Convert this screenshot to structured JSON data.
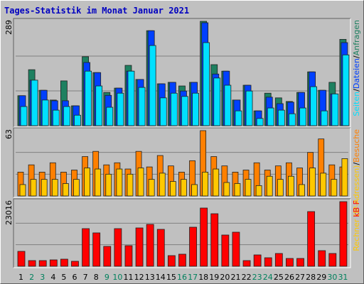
{
  "chart_data": [
    {
      "type": "bar",
      "title": "Tages-Statistik im Monat Januar 2021",
      "categories": [
        "1",
        "2",
        "3",
        "4",
        "5",
        "6",
        "7",
        "8",
        "9",
        "10",
        "11",
        "12",
        "13",
        "14",
        "15",
        "16",
        "17",
        "18",
        "19",
        "20",
        "21",
        "22",
        "23",
        "24",
        "25",
        "26",
        "27",
        "28",
        "29",
        "30",
        "31"
      ],
      "category_colors": [
        "#000000",
        "#00805c",
        "#00805c",
        "#000000",
        "#000000",
        "#000000",
        "#000000",
        "#000000",
        "#00805c",
        "#00805c",
        "#000000",
        "#000000",
        "#000000",
        "#000000",
        "#000000",
        "#00805c",
        "#00805c",
        "#000000",
        "#000000",
        "#000000",
        "#000000",
        "#000000",
        "#00805c",
        "#00805c",
        "#000000",
        "#000000",
        "#000000",
        "#000000",
        "#000000",
        "#00805c",
        "#00805c"
      ],
      "ylim": [
        0,
        289
      ],
      "yticks": [
        289
      ],
      "legend_separator": "/",
      "series": [
        {
          "name": "Anfragen",
          "color": "#1e8060",
          "values": [
            83,
            155,
            98,
            71,
            124,
            55,
            191,
            147,
            92,
            104,
            167,
            128,
            263,
            116,
            120,
            110,
            120,
            289,
            169,
            151,
            71,
            112,
            41,
            90,
            77,
            67,
            92,
            149,
            98,
            120,
            239
          ]
        },
        {
          "name": "Dateien",
          "color": "#0040ff",
          "values": [
            83,
            126,
            98,
            69,
            69,
            55,
            175,
            147,
            84,
            104,
            151,
            128,
            263,
            116,
            120,
            96,
            120,
            285,
            143,
            151,
            71,
            112,
            41,
            79,
            61,
            65,
            92,
            149,
            98,
            88,
            230
          ]
        },
        {
          "name": "Seiten",
          "color": "#00e0ff",
          "values": [
            53,
            126,
            71,
            43,
            53,
            29,
            151,
            110,
            51,
            90,
            151,
            106,
            222,
            77,
            90,
            81,
            90,
            230,
            132,
            112,
            41,
            96,
            20,
            49,
            43,
            33,
            49,
            108,
            41,
            88,
            196
          ]
        }
      ]
    },
    {
      "type": "bar",
      "ylim": [
        0,
        63
      ],
      "yticks": [
        63
      ],
      "legend_separator": "/",
      "series": [
        {
          "name": "Besuche",
          "color": "#ff8000",
          "values": [
            23,
            30,
            23,
            32,
            23,
            25,
            38,
            43,
            30,
            32,
            26,
            43,
            28,
            39,
            29,
            23,
            34,
            63,
            38,
            29,
            23,
            25,
            32,
            25,
            29,
            32,
            27,
            42,
            55,
            30,
            28
          ]
        },
        {
          "name": "Rechner (IP-Adressen)",
          "color": "#ffc800",
          "values": [
            11,
            16,
            16,
            16,
            12,
            16,
            27,
            26,
            21,
            26,
            21,
            27,
            16,
            22,
            14,
            16,
            11,
            23,
            26,
            13,
            12,
            16,
            10,
            19,
            16,
            19,
            11,
            27,
            22,
            16,
            36
          ]
        }
      ]
    },
    {
      "type": "bar",
      "ylim": [
        0,
        23016
      ],
      "yticks": [
        23016
      ],
      "series": [
        {
          "name": "kB F",
          "color": "#ff0000",
          "values": [
            5311,
            2023,
            2023,
            2276,
            2529,
            1770,
            13405,
            11888,
            7082,
            13405,
            7335,
            13658,
            14923,
            13152,
            3794,
            4300,
            13911,
            20740,
            18716,
            11129,
            12140,
            2023,
            4047,
            3035,
            4553,
            2782,
            2782,
            19475,
            5564,
            4553,
            23016
          ]
        }
      ]
    }
  ]
}
